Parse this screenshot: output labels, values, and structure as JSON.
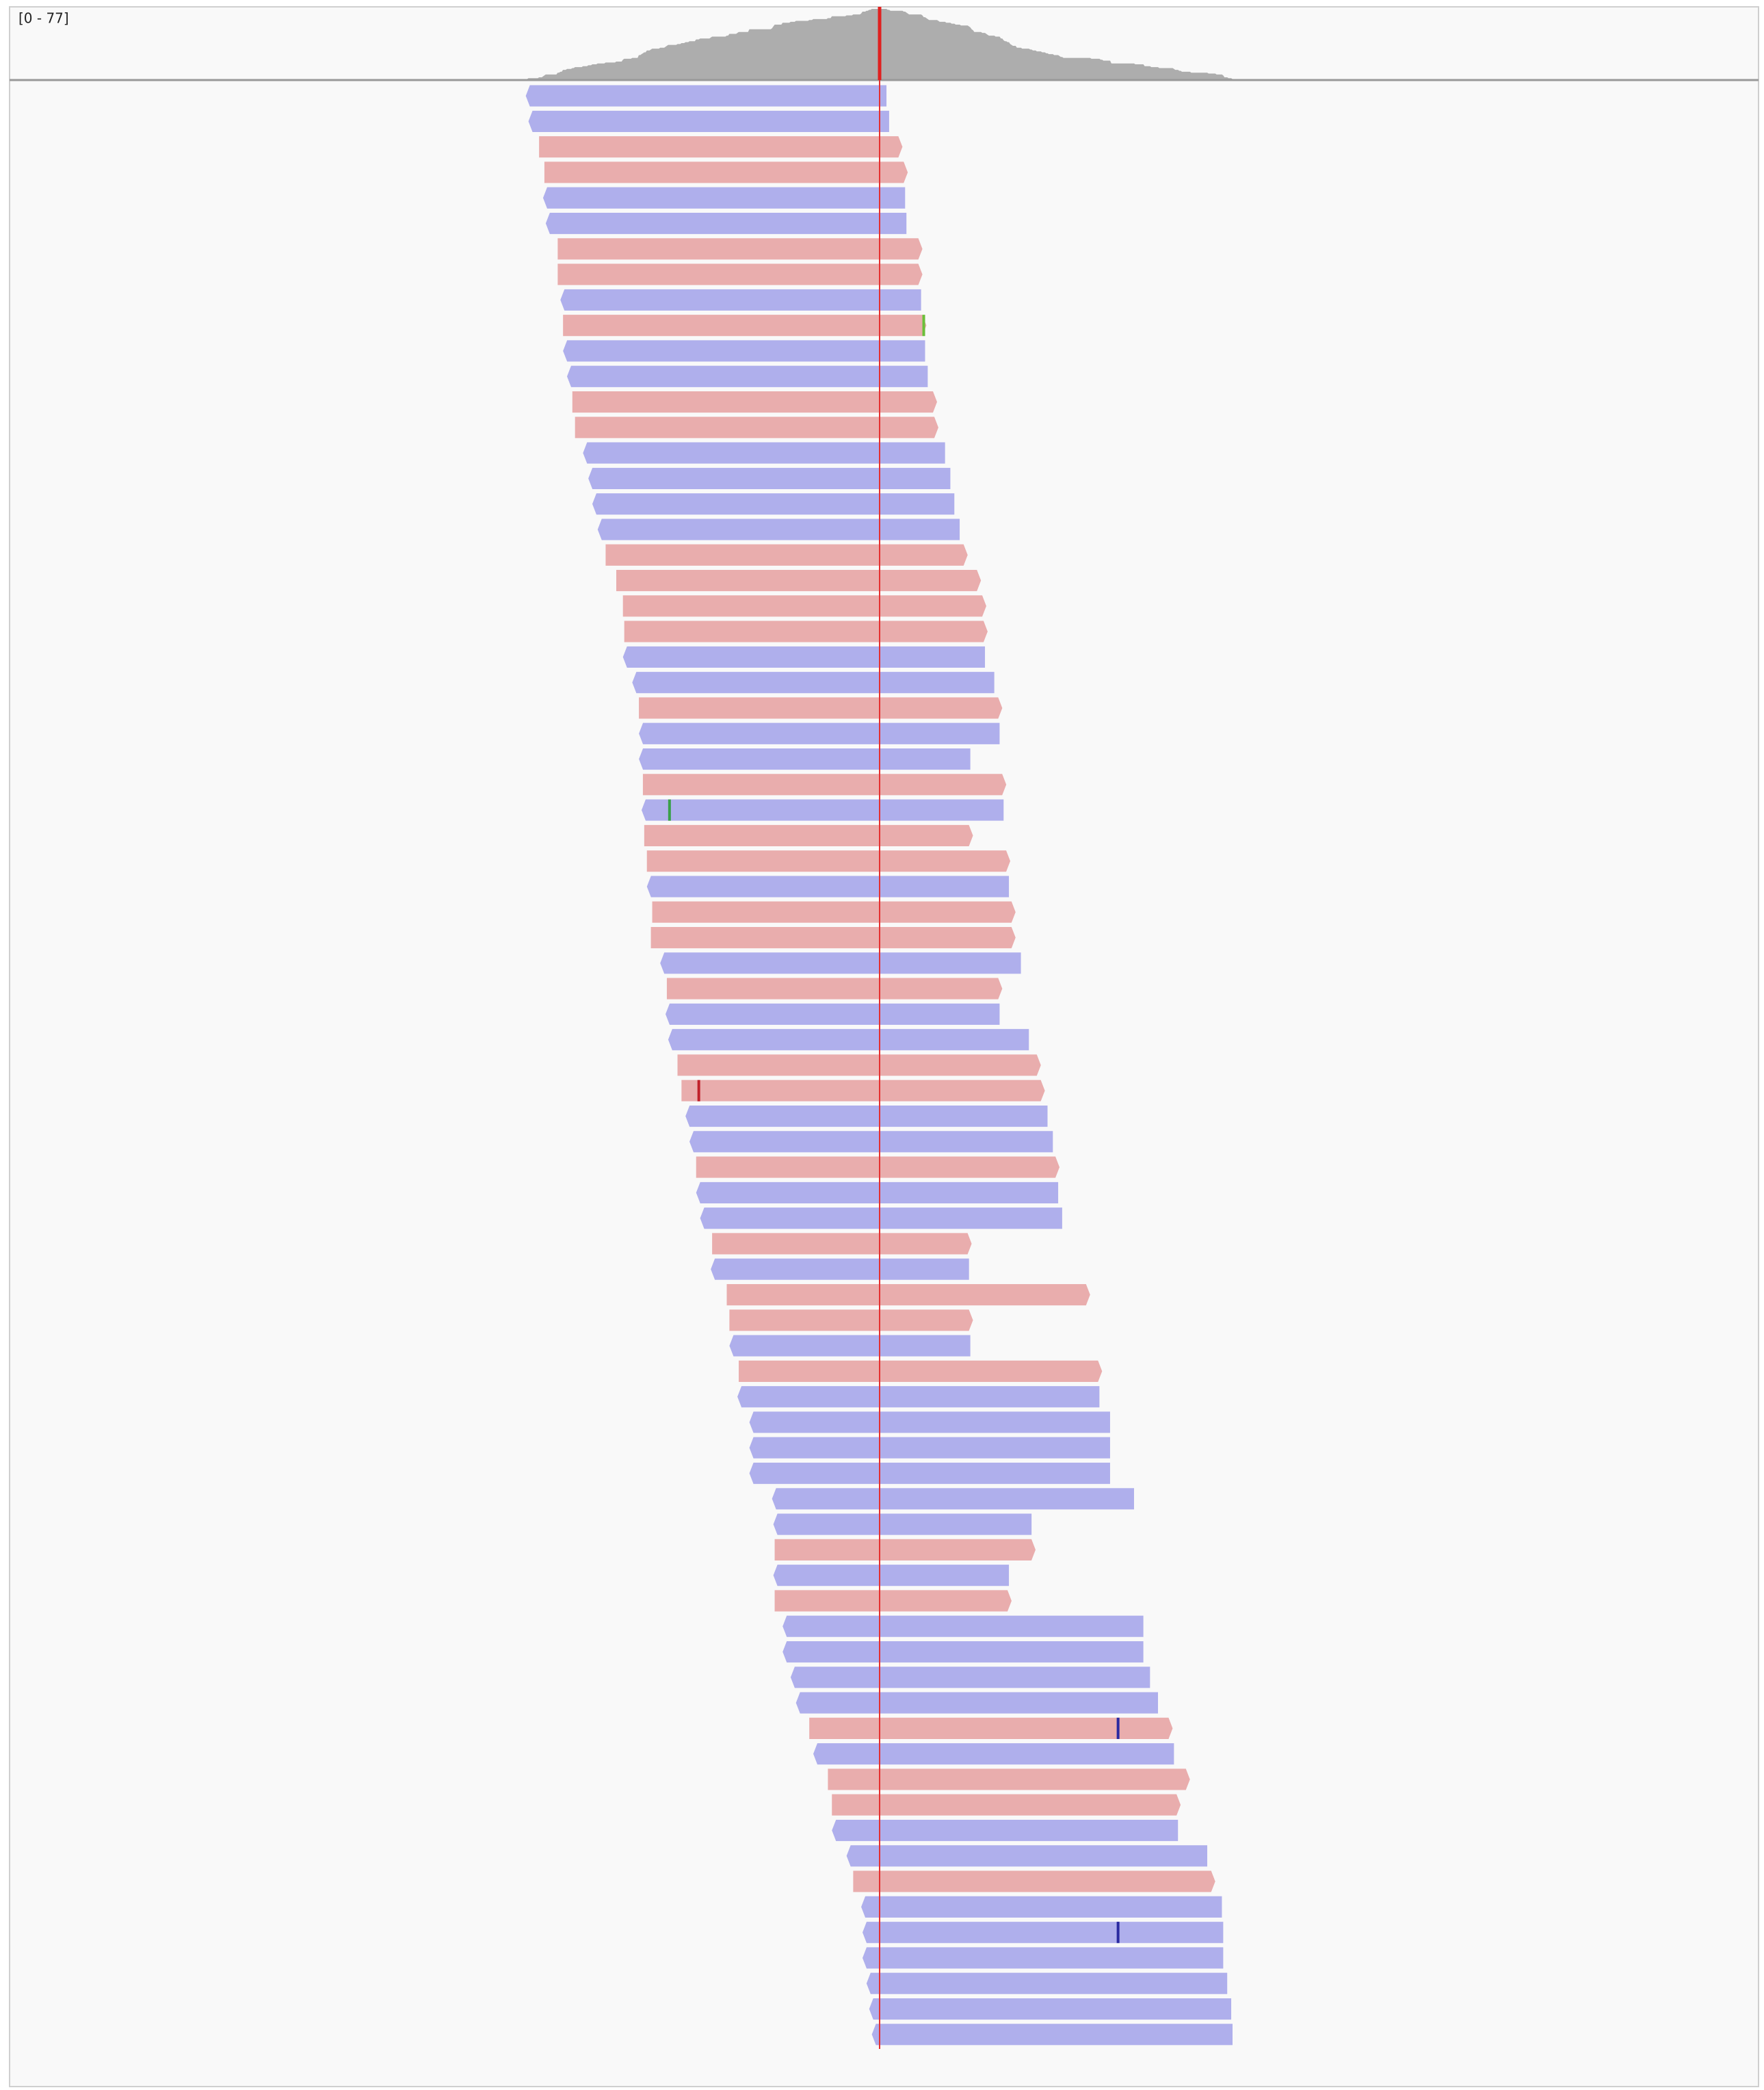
{
  "header": {
    "range": "[0 - 77]"
  }
}
